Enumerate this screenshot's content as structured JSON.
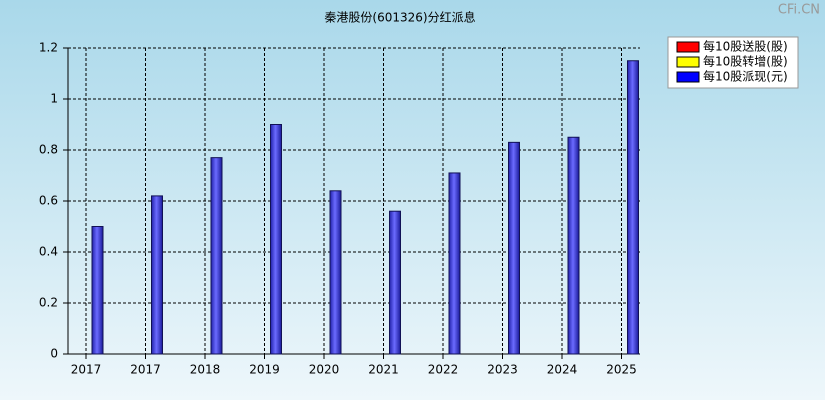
{
  "chart_data": {
    "type": "bar",
    "title": "秦港股份(601326)分红派息",
    "watermark": "CFi.CN",
    "categories": [
      "2017",
      "2017",
      "2018",
      "2019",
      "2020",
      "2021",
      "2022",
      "2023",
      "2024",
      "2025"
    ],
    "series": [
      {
        "name": "每10股送股(股)",
        "color": "#ff0000",
        "values": [
          null,
          null,
          null,
          null,
          null,
          null,
          null,
          null,
          null,
          null
        ]
      },
      {
        "name": "每10股转增(股)",
        "color": "#ffff00",
        "values": [
          null,
          null,
          null,
          null,
          null,
          null,
          null,
          null,
          null,
          null
        ]
      },
      {
        "name": "每10股派现(元)",
        "color": "#0000ff",
        "values": [
          0.5,
          0.62,
          0.77,
          0.9,
          0.64,
          0.56,
          0.71,
          0.83,
          0.85,
          1.15
        ]
      }
    ],
    "ylim": [
      0,
      1.2
    ],
    "yticks": [
      0,
      0.2,
      0.4,
      0.6,
      0.8,
      1,
      1.2
    ],
    "grid": true,
    "legend": "top-right"
  }
}
